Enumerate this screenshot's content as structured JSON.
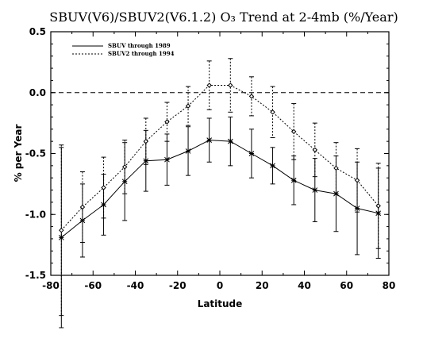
{
  "chart_data": {
    "type": "line",
    "title": "SBUV(V6)/SBUV2(V6.1.2) O₃ Trend at 2-4mb (%/Year)",
    "xlabel": "Latitude",
    "ylabel": "% per Year",
    "xlim": [
      -80,
      80
    ],
    "ylim": [
      -1.5,
      0.5
    ],
    "xticks": [
      "-80",
      "-60",
      "-40",
      "-20",
      "0",
      "20",
      "40",
      "60",
      "80"
    ],
    "yticks": [
      "0.5",
      "0.0",
      "-0.5",
      "-1.0",
      "-1.5"
    ],
    "reference_line": 0.0,
    "legend_position": "top-left",
    "series": [
      {
        "name": "SBUV through 1989",
        "style": "solid",
        "marker": "asterisk",
        "x": [
          -75,
          -65,
          -55,
          -45,
          -35,
          -25,
          -15,
          -5,
          5,
          15,
          25,
          35,
          45,
          55,
          65,
          75
        ],
        "y": [
          -1.19,
          -1.05,
          -0.92,
          -0.73,
          -0.56,
          -0.55,
          -0.48,
          -0.39,
          -0.4,
          -0.5,
          -0.6,
          -0.72,
          -0.8,
          -0.83,
          -0.95,
          -0.99
        ],
        "err": [
          0.74,
          0.3,
          0.25,
          0.32,
          0.25,
          0.21,
          0.2,
          0.18,
          0.2,
          0.2,
          0.15,
          0.2,
          0.26,
          0.31,
          0.38,
          0.37
        ]
      },
      {
        "name": "SBUV2 through 1994",
        "style": "dotted",
        "marker": "diamond",
        "x": [
          -75,
          -65,
          -55,
          -45,
          -35,
          -25,
          -15,
          -5,
          5,
          15,
          25,
          35,
          45,
          55,
          65,
          75
        ],
        "y": [
          -1.13,
          -0.94,
          -0.78,
          -0.61,
          -0.4,
          -0.24,
          -0.11,
          0.06,
          0.06,
          -0.03,
          -0.16,
          -0.32,
          -0.47,
          -0.62,
          -0.72,
          -0.93
        ],
        "err": [
          0.7,
          0.29,
          0.25,
          0.22,
          0.19,
          0.16,
          0.16,
          0.2,
          0.22,
          0.16,
          0.21,
          0.23,
          0.22,
          0.21,
          0.26,
          0.35
        ]
      }
    ]
  }
}
